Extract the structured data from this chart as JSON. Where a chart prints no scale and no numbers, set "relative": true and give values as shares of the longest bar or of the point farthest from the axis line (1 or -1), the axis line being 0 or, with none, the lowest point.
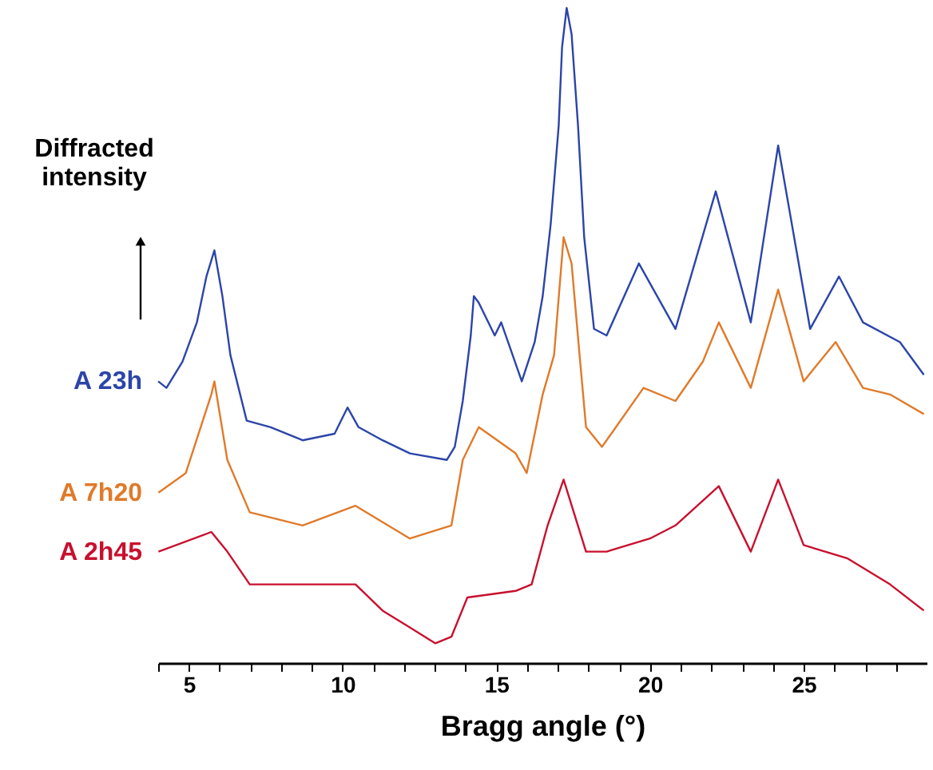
{
  "chart_data": {
    "type": "line",
    "relative": true,
    "xlabel": "Bragg angle (°)",
    "ylabel": "Diffracted intensity",
    "xlim": [
      4,
      29
    ],
    "xticks": [
      {
        "value": 4,
        "label": null
      },
      5,
      {
        "value": 6,
        "label": null
      },
      {
        "value": 7,
        "label": null
      },
      {
        "value": 8,
        "label": null
      },
      {
        "value": 9,
        "label": null
      },
      10,
      {
        "value": 11,
        "label": null
      },
      {
        "value": 12,
        "label": null
      },
      {
        "value": 13,
        "label": null
      },
      {
        "value": 14,
        "label": null
      },
      15,
      {
        "value": 16,
        "label": null
      },
      {
        "value": 17,
        "label": null
      },
      {
        "value": 18,
        "label": null
      },
      {
        "value": 19,
        "label": null
      },
      20,
      {
        "value": 21,
        "label": null
      },
      {
        "value": 22,
        "label": null
      },
      {
        "value": 23,
        "label": null
      },
      {
        "value": 24,
        "label": null
      },
      25,
      {
        "value": 26,
        "label": null
      },
      {
        "value": 27,
        "label": null
      },
      {
        "value": 28,
        "label": null
      }
    ],
    "grid": false,
    "line_style": "solid",
    "series": [
      {
        "name": "A 23h",
        "color": "#2b45a8",
        "x": [
          4.0,
          4.27,
          4.79,
          5.26,
          5.57,
          5.83,
          6.09,
          6.35,
          6.88,
          7.66,
          8.7,
          9.74,
          10.16,
          10.52,
          11.3,
          12.19,
          13.39,
          13.65,
          13.91,
          14.17,
          14.27,
          14.43,
          14.95,
          15.16,
          15.83,
          16.25,
          16.51,
          16.77,
          17.03,
          17.14,
          17.29,
          17.45,
          17.66,
          17.86,
          18.18,
          18.59,
          19.64,
          20.83,
          22.14,
          23.28,
          24.17,
          25.21,
          26.15,
          26.93,
          28.13,
          28.91
        ],
        "values": [
          0.43,
          0.42,
          0.46,
          0.52,
          0.59,
          0.63,
          0.56,
          0.47,
          0.37,
          0.36,
          0.34,
          0.35,
          0.39,
          0.36,
          0.34,
          0.32,
          0.31,
          0.33,
          0.4,
          0.5,
          0.56,
          0.55,
          0.5,
          0.52,
          0.43,
          0.49,
          0.56,
          0.67,
          0.82,
          0.94,
          1.0,
          0.96,
          0.82,
          0.65,
          0.51,
          0.5,
          0.61,
          0.51,
          0.72,
          0.52,
          0.79,
          0.51,
          0.59,
          0.52,
          0.49,
          0.44
        ]
      },
      {
        "name": "A 7h20",
        "color": "#e07a2a",
        "x": [
          4.01,
          4.9,
          5.73,
          5.83,
          6.25,
          6.98,
          8.7,
          10.42,
          12.19,
          13.54,
          13.91,
          14.43,
          15.63,
          15.99,
          16.51,
          16.88,
          17.19,
          17.45,
          17.71,
          17.92,
          18.44,
          19.79,
          20.83,
          21.72,
          22.24,
          23.28,
          24.17,
          25.0,
          26.04,
          26.93,
          27.81,
          28.91
        ],
        "values": [
          0.26,
          0.29,
          0.41,
          0.43,
          0.31,
          0.23,
          0.21,
          0.24,
          0.19,
          0.21,
          0.31,
          0.36,
          0.32,
          0.29,
          0.41,
          0.47,
          0.65,
          0.61,
          0.47,
          0.36,
          0.33,
          0.42,
          0.4,
          0.46,
          0.52,
          0.42,
          0.57,
          0.43,
          0.49,
          0.42,
          0.41,
          0.38
        ]
      },
      {
        "name": "A 2h45",
        "color": "#c8102e",
        "x": [
          4.01,
          5.73,
          6.25,
          6.98,
          8.7,
          10.42,
          11.3,
          13.02,
          13.54,
          14.06,
          15.63,
          16.15,
          16.67,
          17.19,
          17.92,
          18.59,
          20.0,
          20.83,
          22.24,
          23.28,
          24.17,
          25.0,
          26.41,
          27.81,
          28.91
        ],
        "values": [
          0.17,
          0.2,
          0.17,
          0.12,
          0.12,
          0.12,
          0.08,
          0.03,
          0.04,
          0.1,
          0.11,
          0.12,
          0.21,
          0.28,
          0.17,
          0.17,
          0.19,
          0.21,
          0.27,
          0.17,
          0.28,
          0.18,
          0.16,
          0.12,
          0.08
        ]
      }
    ]
  }
}
